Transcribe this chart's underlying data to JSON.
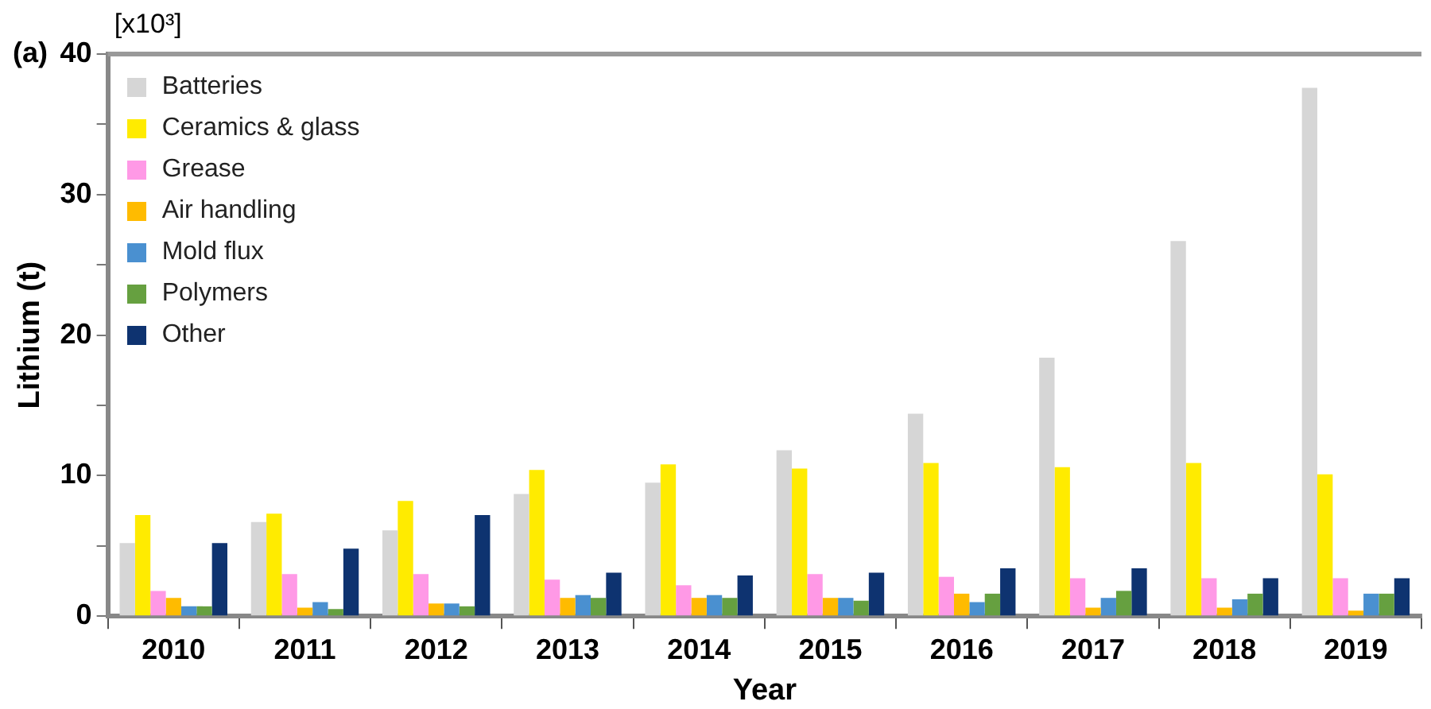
{
  "chart_data": {
    "type": "bar",
    "xlabel": "Year",
    "ylabel": "Lithium (t)",
    "annotations": [
      "(a)",
      "[x10³]"
    ],
    "categories": [
      "2010",
      "2011",
      "2012",
      "2013",
      "2014",
      "2015",
      "2016",
      "2017",
      "2018",
      "2019"
    ],
    "series": [
      {
        "name": "Batteries",
        "color": "#d6d6d6",
        "values": [
          5.2,
          6.7,
          6.1,
          8.7,
          9.5,
          11.8,
          14.4,
          18.4,
          26.7,
          37.6
        ]
      },
      {
        "name": "Ceramics & glass",
        "color": "#ffeb00",
        "values": [
          7.2,
          7.3,
          8.2,
          10.4,
          10.8,
          10.5,
          10.9,
          10.6,
          10.9,
          10.1
        ]
      },
      {
        "name": "Grease",
        "color": "#ff99e6",
        "values": [
          1.8,
          3.0,
          3.0,
          2.6,
          2.2,
          3.0,
          2.8,
          2.7,
          2.7,
          2.7
        ]
      },
      {
        "name": "Air handling",
        "color": "#ffbb00",
        "values": [
          1.3,
          0.6,
          0.9,
          1.3,
          1.3,
          1.3,
          1.6,
          0.6,
          0.6,
          0.4
        ]
      },
      {
        "name": "Mold flux",
        "color": "#4a90d0",
        "values": [
          0.7,
          1.0,
          0.9,
          1.5,
          1.5,
          1.3,
          1.0,
          1.3,
          1.2,
          1.6
        ]
      },
      {
        "name": "Polymers",
        "color": "#66a040",
        "values": [
          0.7,
          0.5,
          0.7,
          1.3,
          1.3,
          1.1,
          1.6,
          1.8,
          1.6,
          1.6
        ]
      },
      {
        "name": "Other",
        "color": "#0e3370",
        "values": [
          5.2,
          4.8,
          7.2,
          3.1,
          2.9,
          3.1,
          3.4,
          3.4,
          2.7,
          2.7
        ]
      }
    ],
    "ylim": [
      0,
      40
    ],
    "yticks": [
      0,
      {
        "value": 5,
        "label": null
      },
      10,
      {
        "value": 15,
        "label": null
      },
      20,
      {
        "value": 25,
        "label": null
      },
      30,
      {
        "value": 35,
        "label": null
      },
      40
    ],
    "grid": false,
    "legend": "top left"
  }
}
